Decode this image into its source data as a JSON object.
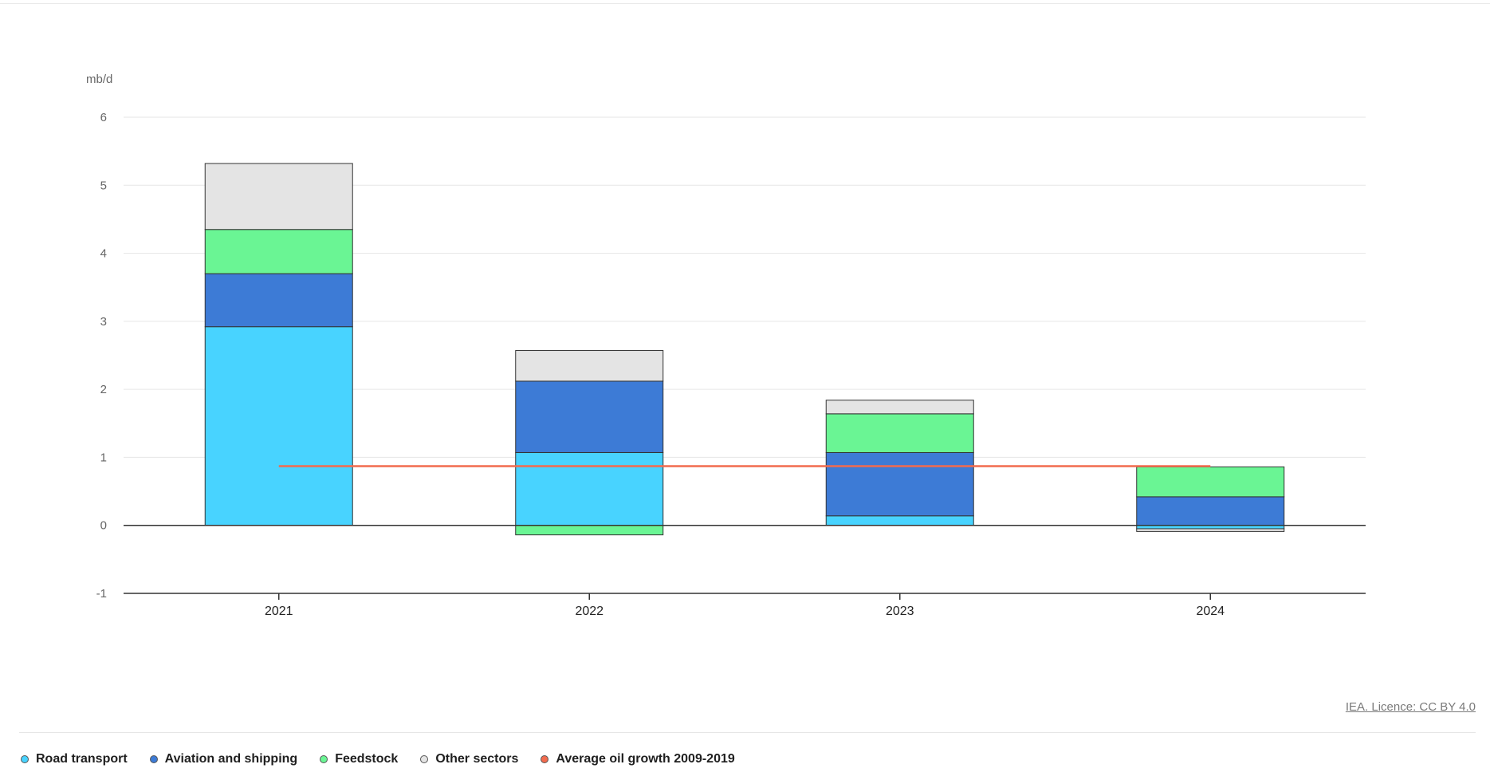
{
  "chart_data": {
    "type": "bar",
    "stacked": true,
    "ylabel": "mb/d",
    "ylim": [
      -1,
      6
    ],
    "yticks": [
      6,
      5,
      4,
      3,
      2,
      1,
      0,
      -1
    ],
    "categories": [
      "2021",
      "2022",
      "2023",
      "2024"
    ],
    "series": [
      {
        "name": "Road transport",
        "color": "#48d3ff",
        "values": [
          2.92,
          1.07,
          0.14,
          -0.05
        ]
      },
      {
        "name": "Aviation and shipping",
        "color": "#3d7bd6",
        "values": [
          0.78,
          1.05,
          0.93,
          0.42
        ]
      },
      {
        "name": "Feedstock",
        "color": "#6af594",
        "values": [
          0.65,
          -0.14,
          0.57,
          0.44
        ]
      },
      {
        "name": "Other sectors",
        "color": "#e4e4e4",
        "values": [
          0.97,
          0.45,
          0.2,
          -0.04
        ]
      }
    ],
    "reference_line": {
      "name": "Average oil growth 2009-2019",
      "color": "#f26b4e",
      "value": 0.87,
      "from": "2021",
      "to": "2024"
    },
    "grid": true,
    "legend_position": "bottom-left"
  },
  "licence_text": "IEA. Licence: CC BY 4.0"
}
